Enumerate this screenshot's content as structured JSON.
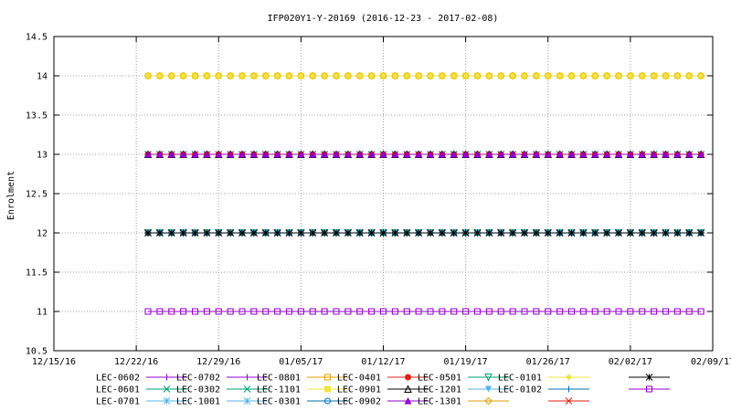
{
  "chart_data": {
    "type": "line",
    "title": "IFP020Y1-Y-20169 (2016-12-23 - 2017-02-08)",
    "ylabel": "Enrolment",
    "xlabel": "",
    "x_start": "2016-12-23",
    "x_end": "2017-02-08",
    "xlim": [
      "2016-12-15",
      "2017-02-09"
    ],
    "ylim": [
      10.5,
      14.5
    ],
    "grid": true,
    "legend_placement": "bottom",
    "x_ticks": [
      {
        "date": "2016-12-15",
        "label": "12/15/16"
      },
      {
        "date": "2016-12-22",
        "label": "12/22/16"
      },
      {
        "date": "2016-12-29",
        "label": "12/29/16"
      },
      {
        "date": "2017-01-05",
        "label": "01/05/17"
      },
      {
        "date": "2017-01-12",
        "label": "01/12/17"
      },
      {
        "date": "2017-01-19",
        "label": "01/19/17"
      },
      {
        "date": "2017-01-26",
        "label": "01/26/17"
      },
      {
        "date": "2017-02-02",
        "label": "02/02/17"
      },
      {
        "date": "2017-02-09",
        "label": "02/09/17"
      }
    ],
    "y_ticks": [
      {
        "value": 10.5,
        "label": "10.5"
      },
      {
        "value": 11,
        "label": "11"
      },
      {
        "value": 11.5,
        "label": "11.5"
      },
      {
        "value": 12,
        "label": "12"
      },
      {
        "value": 12.5,
        "label": "12.5"
      },
      {
        "value": 13,
        "label": "13"
      },
      {
        "value": 13.5,
        "label": "13.5"
      },
      {
        "value": 14,
        "label": "14"
      },
      {
        "value": 14.5,
        "label": "14.5"
      }
    ],
    "series": [
      {
        "name": "LEC-0602",
        "color": "#9400d3",
        "marker": "plus",
        "value": 13
      },
      {
        "name": "LEC-0601",
        "color": "#009e73",
        "marker": "cross",
        "value": 13
      },
      {
        "name": "LEC-0701",
        "color": "#56b4e9",
        "marker": "asterisk",
        "value": 12
      },
      {
        "name": "LEC-0702",
        "color": "#9400d3",
        "marker": "plus",
        "value": 13
      },
      {
        "name": "LEC-0302",
        "color": "#009e73",
        "marker": "cross",
        "value": 13
      },
      {
        "name": "LEC-1001",
        "color": "#56b4e9",
        "marker": "asterisk",
        "value": 12
      },
      {
        "name": "LEC-0801",
        "color": "#e69f00",
        "marker": "open-square",
        "value": 11
      },
      {
        "name": "LEC-1101",
        "color": "#f0e442",
        "marker": "filled-square",
        "value": 14
      },
      {
        "name": "LEC-0301",
        "color": "#0072b2",
        "marker": "open-circle",
        "value": 12
      },
      {
        "name": "LEC-0401",
        "color": "#e51e10",
        "marker": "filled-circle",
        "value": 13
      },
      {
        "name": "LEC-0901",
        "color": "#000000",
        "marker": "open-triangle",
        "value": 13
      },
      {
        "name": "LEC-0902",
        "color": "#9400d3",
        "marker": "filled-triangle",
        "value": 13
      },
      {
        "name": "LEC-0501",
        "color": "#009e73",
        "marker": "open-down-triangle",
        "value": 12
      },
      {
        "name": "LEC-1201",
        "color": "#56b4e9",
        "marker": "filled-down-triangle",
        "value": 12
      },
      {
        "name": "LEC-1301",
        "color": "#e69f00",
        "marker": "open-diamond",
        "value": 14
      },
      {
        "name": "LEC-0101",
        "color": "#f0e442",
        "marker": "filled-diamond",
        "value": 14
      },
      {
        "name": "LEC-0102",
        "color": "#0072b2",
        "marker": "plus",
        "value": 12
      },
      {
        "name": "",
        "color": "#e51e10",
        "marker": "cross",
        "value": 12
      },
      {
        "name": "",
        "color": "#000000",
        "marker": "asterisk",
        "value": 12
      },
      {
        "name": "",
        "color": "#9400d3",
        "marker": "open-square",
        "value": 11
      }
    ]
  }
}
